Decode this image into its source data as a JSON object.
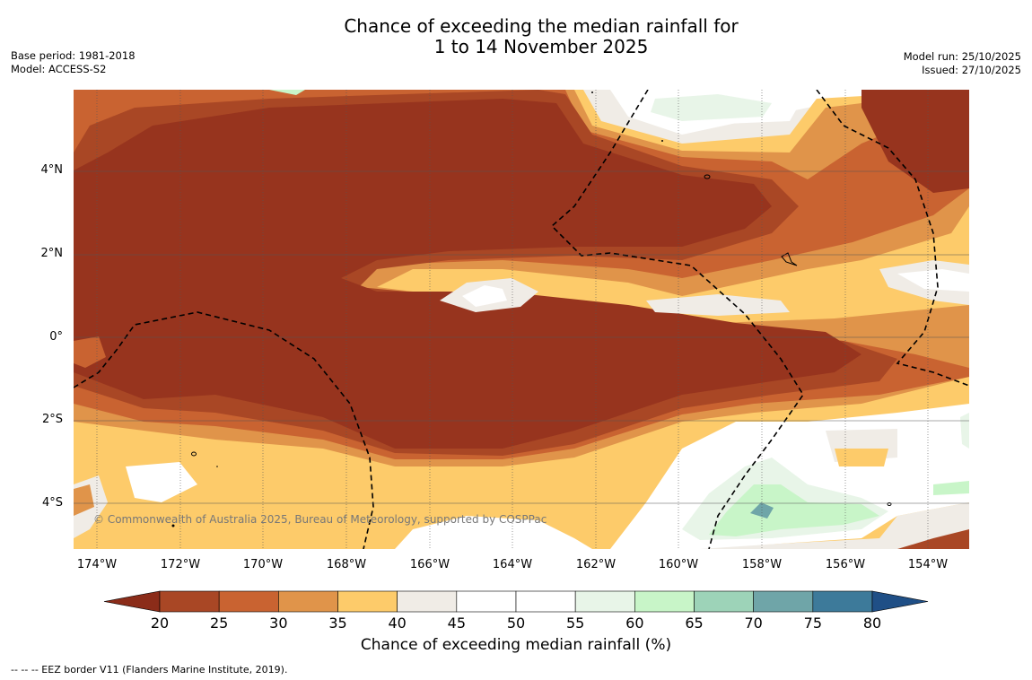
{
  "title": {
    "line1": "Chance of exceeding the median rainfall for",
    "line2": "1 to 14 November 2025"
  },
  "meta_left": {
    "base_period": "Base period: 1981-2018",
    "model": "Model: ACCESS-S2"
  },
  "meta_right": {
    "model_run": "Model run: 25/10/2025",
    "issued": "Issued: 27/10/2025"
  },
  "map": {
    "lat_labels": [
      "4°N",
      "2°N",
      "0°",
      "2°S",
      "4°S"
    ],
    "lon_labels": [
      "174°W",
      "172°W",
      "170°W",
      "168°W",
      "166°W",
      "164°W",
      "162°W",
      "160°W",
      "158°W",
      "156°W",
      "154°W"
    ],
    "copyright": "© Commonwealth of Australia 2025, Bureau of Meteorology, supported by COSPPac"
  },
  "colorbar": {
    "ticks": [
      "20",
      "25",
      "30",
      "35",
      "40",
      "45",
      "50",
      "55",
      "60",
      "65",
      "70",
      "75",
      "80"
    ],
    "colors": [
      "#97341e",
      "#a94725",
      "#c96331",
      "#e0944a",
      "#fdcb6a",
      "#f0ece6",
      "#ffffff",
      "#ffffff",
      "#e8f5e8",
      "#c8f5c8",
      "#9dd3b8",
      "#6fa5a8",
      "#3d7a9a"
    ],
    "under_color": "#8b2c19",
    "over_color": "#1f4f86",
    "label": "Chance of exceeding median rainfall (%)"
  },
  "footnote": "--  --  -- EEZ border V11 (Flanders Marine Institute, 2019)."
}
